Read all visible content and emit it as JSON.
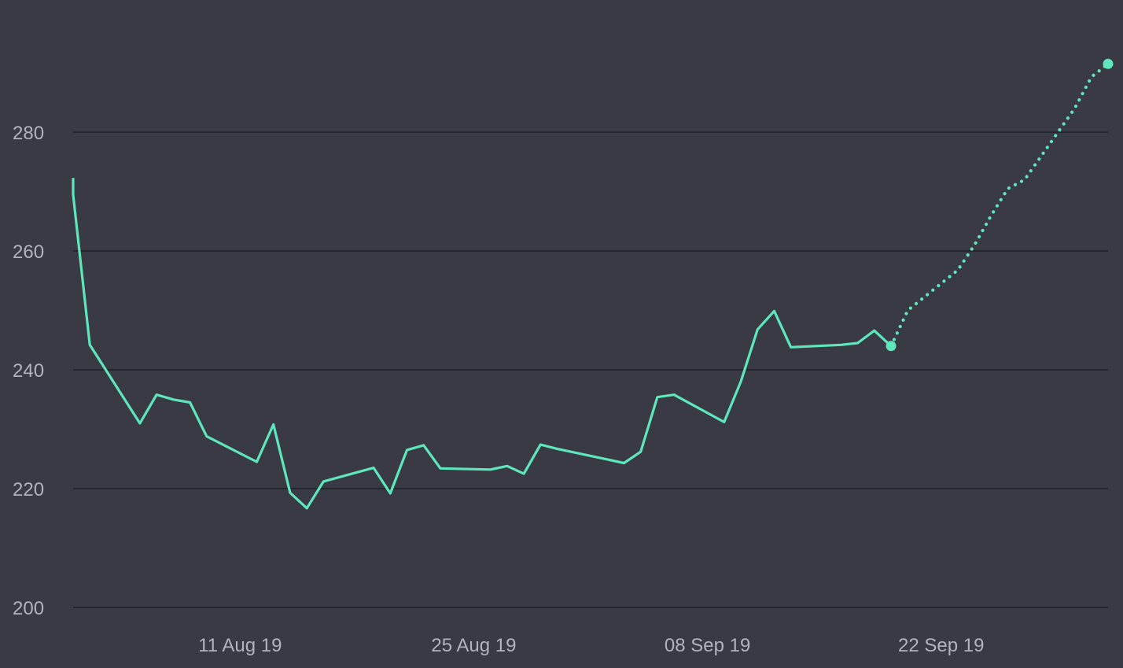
{
  "chart_data": {
    "type": "line",
    "title": "",
    "xlabel": "",
    "ylabel": "",
    "ylim": [
      200,
      290
    ],
    "xlim": [
      "2019-08-01",
      "2019-10-02"
    ],
    "y_ticks": [
      "200",
      "220",
      "240",
      "260",
      "280"
    ],
    "x_ticks": [
      {
        "date": "2019-08-11",
        "label": "11 Aug 19"
      },
      {
        "date": "2019-08-25",
        "label": "25 Aug 19"
      },
      {
        "date": "2019-09-08",
        "label": "08 Sep 19"
      },
      {
        "date": "2019-09-22",
        "label": "22 Sep 19"
      }
    ],
    "grid": true,
    "legend": "none",
    "series": [
      {
        "style": "solid",
        "color": "#5ee6bd",
        "points": [
          {
            "x": "2019-08-01",
            "y": 272.3
          },
          {
            "x": "2019-08-01",
            "y": 269.5
          },
          {
            "x": "2019-08-02",
            "y": 244.2
          },
          {
            "x": "2019-08-05",
            "y": 231.0
          },
          {
            "x": "2019-08-06",
            "y": 235.8
          },
          {
            "x": "2019-08-07",
            "y": 235.0
          },
          {
            "x": "2019-08-08",
            "y": 234.5
          },
          {
            "x": "2019-08-09",
            "y": 228.8
          },
          {
            "x": "2019-08-12",
            "y": 224.5
          },
          {
            "x": "2019-08-13",
            "y": 230.8
          },
          {
            "x": "2019-08-14",
            "y": 219.3
          },
          {
            "x": "2019-08-15",
            "y": 216.7
          },
          {
            "x": "2019-08-16",
            "y": 221.2
          },
          {
            "x": "2019-08-19",
            "y": 223.5
          },
          {
            "x": "2019-08-20",
            "y": 219.2
          },
          {
            "x": "2019-08-21",
            "y": 226.5
          },
          {
            "x": "2019-08-22",
            "y": 227.3
          },
          {
            "x": "2019-08-23",
            "y": 223.4
          },
          {
            "x": "2019-08-26",
            "y": 223.2
          },
          {
            "x": "2019-08-27",
            "y": 223.8
          },
          {
            "x": "2019-08-28",
            "y": 222.5
          },
          {
            "x": "2019-08-29",
            "y": 227.4
          },
          {
            "x": "2019-08-30",
            "y": 226.7
          },
          {
            "x": "2019-09-03",
            "y": 224.3
          },
          {
            "x": "2019-09-04",
            "y": 226.2
          },
          {
            "x": "2019-09-05",
            "y": 235.4
          },
          {
            "x": "2019-09-06",
            "y": 235.8
          },
          {
            "x": "2019-09-09",
            "y": 231.2
          },
          {
            "x": "2019-09-10",
            "y": 238.0
          },
          {
            "x": "2019-09-11",
            "y": 246.8
          },
          {
            "x": "2019-09-12",
            "y": 249.9
          },
          {
            "x": "2019-09-13",
            "y": 243.8
          },
          {
            "x": "2019-09-16",
            "y": 244.2
          },
          {
            "x": "2019-09-17",
            "y": 244.5
          },
          {
            "x": "2019-09-18",
            "y": 246.6
          },
          {
            "x": "2019-09-19",
            "y": 244.0
          }
        ]
      },
      {
        "style": "dotted",
        "color": "#5ee6bd",
        "points": [
          {
            "x": "2019-09-19",
            "y": 244.0
          },
          {
            "x": "2019-09-20",
            "y": 250.0
          },
          {
            "x": "2019-09-23",
            "y": 256.8
          },
          {
            "x": "2019-09-24",
            "y": 261.0
          },
          {
            "x": "2019-09-25",
            "y": 266.0
          },
          {
            "x": "2019-09-26",
            "y": 270.5
          },
          {
            "x": "2019-09-27",
            "y": 272.0
          },
          {
            "x": "2019-09-30",
            "y": 284.0
          },
          {
            "x": "2019-10-01",
            "y": 289.3
          },
          {
            "x": "2019-10-02",
            "y": 291.5
          }
        ]
      }
    ],
    "end_markers": [
      {
        "x": "2019-09-19",
        "y": 244.0
      },
      {
        "x": "2019-10-02",
        "y": 291.5
      }
    ]
  }
}
